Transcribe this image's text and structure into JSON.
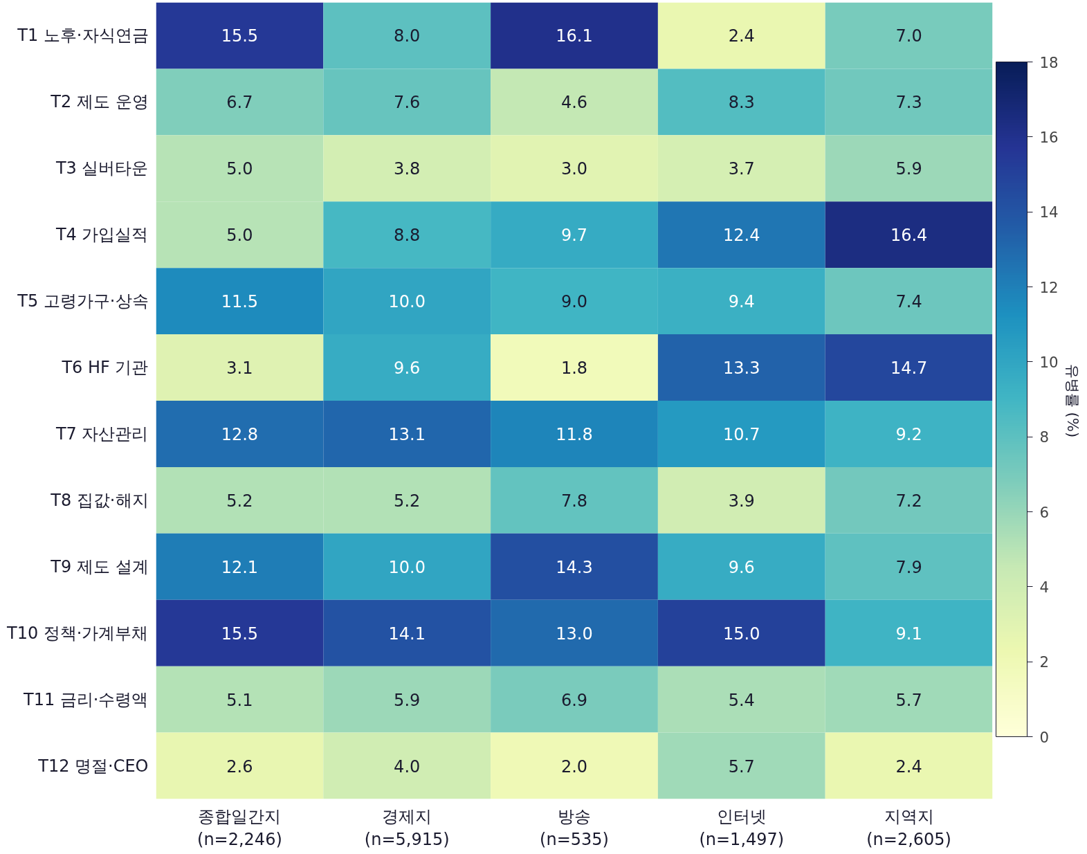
{
  "chart_data": {
    "type": "heatmap",
    "clabel": "유병률 (%)",
    "clim": [
      0,
      18
    ],
    "cticks": [
      0,
      2,
      4,
      6,
      8,
      10,
      12,
      14,
      16,
      18
    ],
    "data_labels": true,
    "categories": [
      "종합일간지\n(n=2,246)",
      "경제지\n(n=5,915)",
      "방송\n(n=535)",
      "인터넷\n(n=1,497)",
      "지역지\n(n=2,605)"
    ],
    "y_categories": [
      "T1 노후·자식연금",
      "T2 제도 운영",
      "T3 실버타운",
      "T4 가입실적",
      "T5 고령가구·상속",
      "T6 HF 기관",
      "T7 자산관리",
      "T8 집값·해지",
      "T9 제도 설계",
      "T10 정책·가계부채",
      "T11 금리·수령액",
      "T12 명절·CEO"
    ],
    "cells": [
      [
        15.5,
        8.0,
        16.1,
        2.4,
        7.0
      ],
      [
        6.7,
        7.6,
        4.6,
        8.3,
        7.3
      ],
      [
        5.0,
        3.8,
        3.0,
        3.7,
        5.9
      ],
      [
        5.0,
        8.8,
        9.7,
        12.4,
        16.4
      ],
      [
        11.5,
        10.0,
        9.0,
        9.4,
        7.4
      ],
      [
        3.1,
        9.6,
        1.8,
        13.3,
        14.7
      ],
      [
        12.8,
        13.1,
        11.8,
        10.7,
        9.2
      ],
      [
        5.2,
        5.2,
        7.8,
        3.9,
        7.2
      ],
      [
        12.1,
        10.0,
        14.3,
        9.6,
        7.9
      ],
      [
        15.5,
        14.1,
        13.0,
        15.0,
        9.1
      ],
      [
        5.1,
        5.9,
        6.9,
        5.4,
        5.7
      ],
      [
        2.6,
        4.0,
        2.0,
        5.7,
        2.4
      ]
    ],
    "cell_labels": [
      [
        "15.5",
        "8.0",
        "16.1",
        "2.4",
        "7.0"
      ],
      [
        "6.7",
        "7.6",
        "4.6",
        "8.3",
        "7.3"
      ],
      [
        "5.0",
        "3.8",
        "3.0",
        "3.7",
        "5.9"
      ],
      [
        "5.0",
        "8.8",
        "9.7",
        "12.4",
        "16.4"
      ],
      [
        "11.5",
        "10.0",
        "9.0",
        "9.4",
        "7.4"
      ],
      [
        "3.1",
        "9.6",
        "1.8",
        "13.3",
        "14.7"
      ],
      [
        "12.8",
        "13.1",
        "11.8",
        "10.7",
        "9.2"
      ],
      [
        "5.2",
        "5.2",
        "7.8",
        "3.9",
        "7.2"
      ],
      [
        "12.1",
        "10.0",
        "14.3",
        "9.6",
        "7.9"
      ],
      [
        "15.5",
        "14.1",
        "13.0",
        "15.0",
        "9.1"
      ],
      [
        "5.1",
        "5.9",
        "6.9",
        "5.4",
        "5.7"
      ],
      [
        "2.6",
        "4.0",
        "2.0",
        "5.7",
        "2.4"
      ]
    ]
  }
}
